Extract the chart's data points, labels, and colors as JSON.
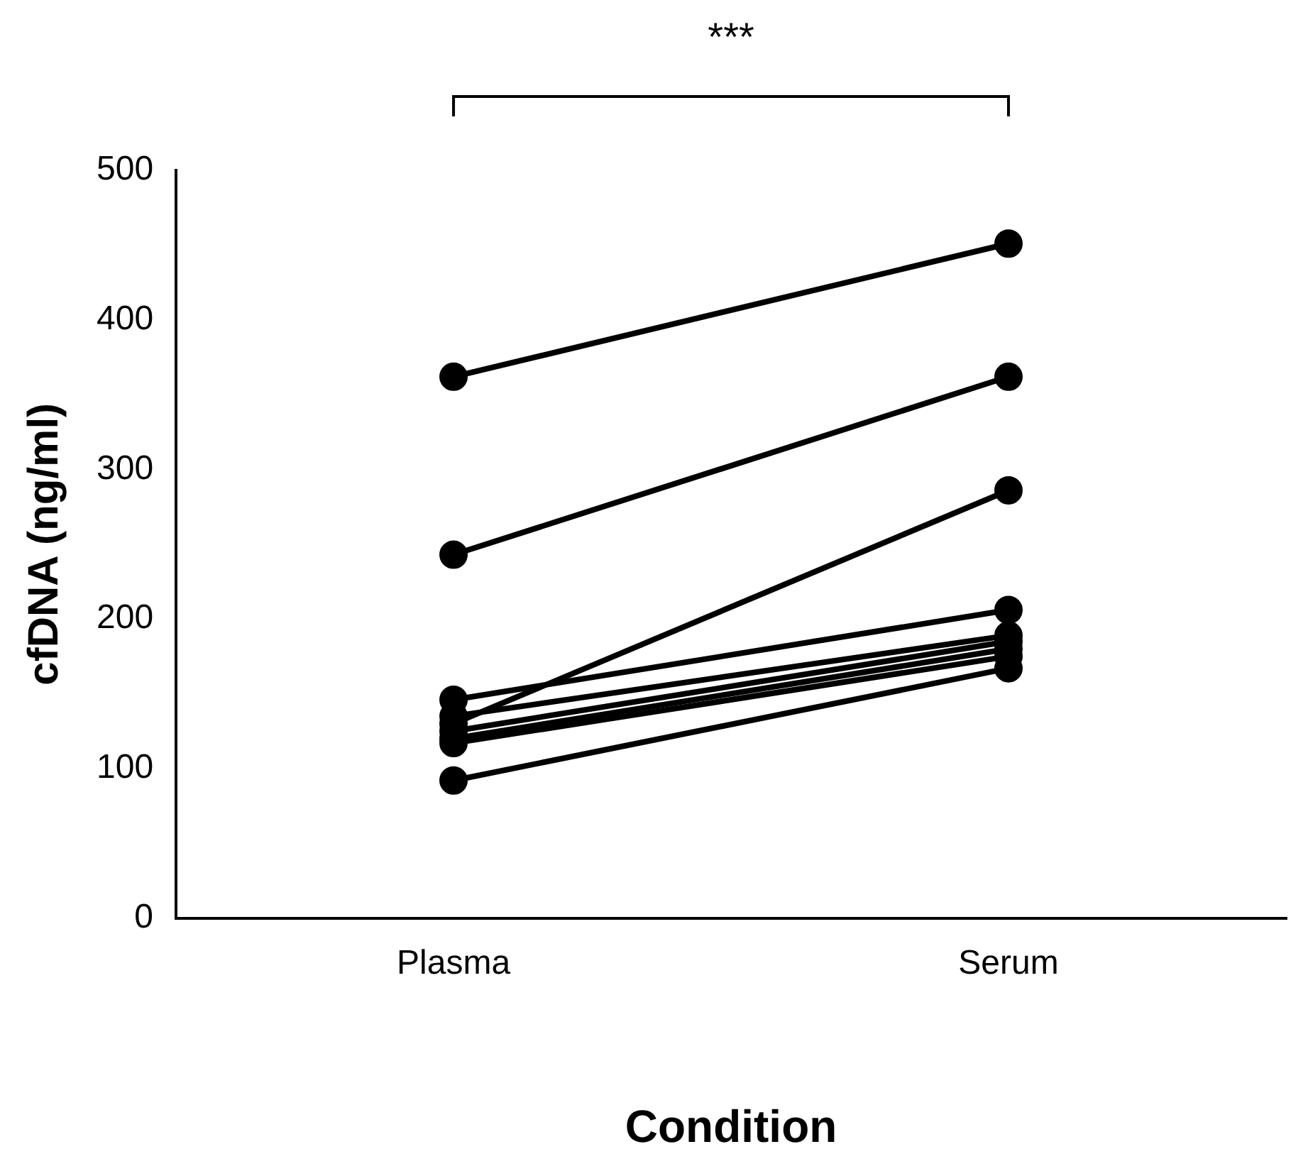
{
  "chart_data": {
    "type": "line",
    "xlabel": "Condition",
    "ylabel": "cfDNA (ng/ml)",
    "categories": [
      "Plasma",
      "Serum"
    ],
    "series": [
      {
        "color": "#000000",
        "values": [
          362,
          451
        ]
      },
      {
        "color": "#000000",
        "values": [
          243,
          362
        ]
      },
      {
        "color": "#000000",
        "values": [
          146,
          206
        ]
      },
      {
        "color": "#000000",
        "values": [
          135,
          189
        ]
      },
      {
        "color": "#000000",
        "values": [
          130,
          286
        ]
      },
      {
        "color": "#000000",
        "values": [
          125,
          185
        ]
      },
      {
        "color": "#000000",
        "values": [
          120,
          180
        ]
      },
      {
        "color": "#000000",
        "values": [
          117,
          175
        ]
      },
      {
        "color": "#000000",
        "values": [
          92,
          167
        ]
      }
    ],
    "ylim": [
      0,
      500
    ],
    "yticks": [
      0,
      100,
      200,
      300,
      400,
      500
    ],
    "grid": false,
    "legend": false,
    "marker": "circle",
    "line_style": "solid",
    "annotations": [
      "***"
    ]
  }
}
